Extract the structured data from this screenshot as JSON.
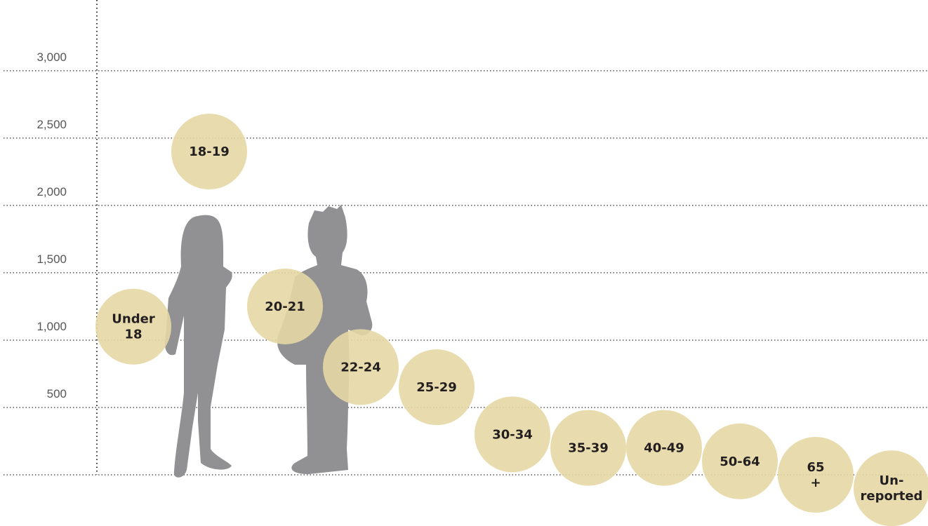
{
  "chart_data": {
    "type": "scatter",
    "categories": [
      "Under 18",
      "18-19",
      "20-21",
      "22-24",
      "25-29",
      "30-34",
      "35-39",
      "40-49",
      "50-64",
      "65 +",
      "Un-reported"
    ],
    "values": [
      1100,
      2400,
      1250,
      800,
      650,
      300,
      200,
      200,
      100,
      0,
      -100
    ],
    "color": "#e6d7a4",
    "ylim": [
      -380,
      3525
    ],
    "yticks": [
      {
        "value": 500,
        "label": "500"
      },
      {
        "value": 1000,
        "label": "1,000"
      },
      {
        "value": 1500,
        "label": "1,500"
      },
      {
        "value": 2000,
        "label": "2,000"
      },
      {
        "value": 2500,
        "label": "2,500"
      },
      {
        "value": 3000,
        "label": "3,000"
      }
    ],
    "grid": true
  }
}
